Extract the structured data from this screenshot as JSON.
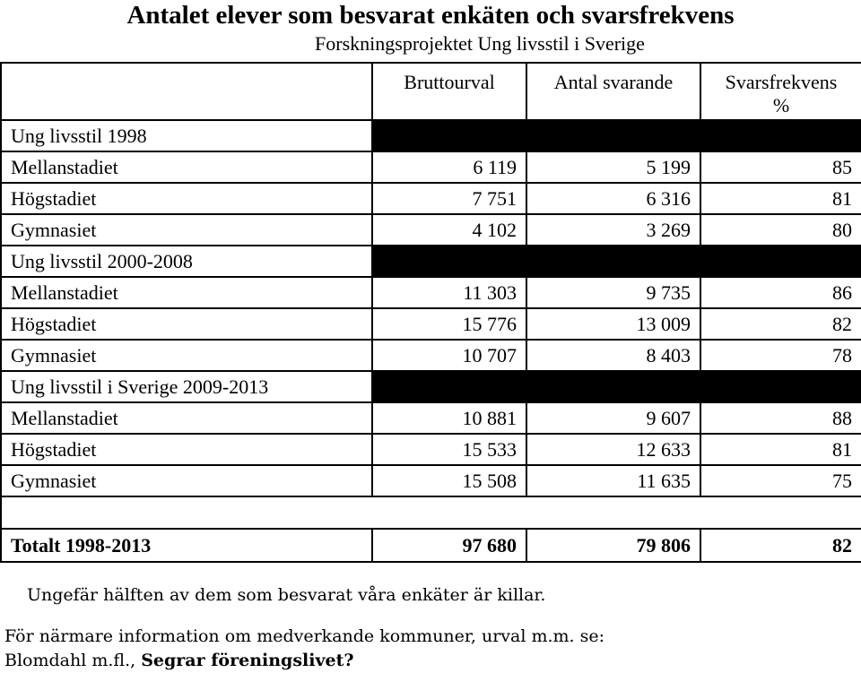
{
  "title": "Antalet elever som besvarat enkäten och svarsfrekvens",
  "subtitle": "Forskningsprojektet Ung livsstil i Sverige",
  "columns": {
    "bruttourval": "Bruttourval",
    "antal_svarande": "Antal svarande",
    "svarsfrekvens_line1": "Svarsfrekvens",
    "svarsfrekvens_line2": "%"
  },
  "groups": [
    {
      "label": "Ung livsstil 1998",
      "rows": [
        {
          "label": "Mellanstadiet",
          "bruttourval": "6 119",
          "antal": "5 199",
          "frekvens": "85"
        },
        {
          "label": "Högstadiet",
          "bruttourval": "7 751",
          "antal": "6 316",
          "frekvens": "81"
        },
        {
          "label": "Gymnasiet",
          "bruttourval": "4 102",
          "antal": "3 269",
          "frekvens": "80"
        }
      ]
    },
    {
      "label": "Ung livsstil 2000-2008",
      "rows": [
        {
          "label": "Mellanstadiet",
          "bruttourval": "11 303",
          "antal": "9 735",
          "frekvens": "86"
        },
        {
          "label": "Högstadiet",
          "bruttourval": "15 776",
          "antal": "13 009",
          "frekvens": "82"
        },
        {
          "label": "Gymnasiet",
          "bruttourval": "10 707",
          "antal": "8 403",
          "frekvens": "78"
        }
      ]
    },
    {
      "label": "Ung livsstil i Sverige 2009-2013",
      "rows": [
        {
          "label": "Mellanstadiet",
          "bruttourval": "10 881",
          "antal": "9 607",
          "frekvens": "88"
        },
        {
          "label": "Högstadiet",
          "bruttourval": "15 533",
          "antal": "12 633",
          "frekvens": "81"
        },
        {
          "label": "Gymnasiet",
          "bruttourval": "15 508",
          "antal": "11 635",
          "frekvens": "75"
        }
      ]
    }
  ],
  "total": {
    "label": "Totalt 1998-2013",
    "bruttourval": "97 680",
    "antal": "79 806",
    "frekvens": "82"
  },
  "notes": {
    "half": "Ungefär hälften av dem som besvarat våra enkäter är killar.",
    "more_info": "För närmare information om medverkande kommuner, urval m.m. se:",
    "reference_author": "Blomdahl m.fl.,",
    "reference_title": "Segrar föreningslivet?"
  }
}
